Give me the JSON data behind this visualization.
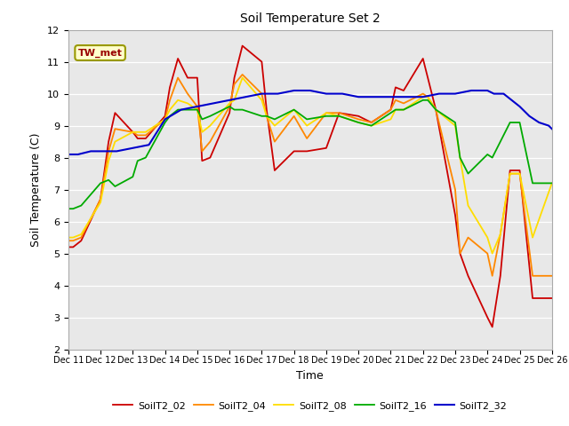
{
  "title": "Soil Temperature Set 2",
  "xlabel": "Time",
  "ylabel": "Soil Temperature (C)",
  "ylim": [
    2.0,
    12.0
  ],
  "yticks": [
    2.0,
    3.0,
    4.0,
    5.0,
    6.0,
    7.0,
    8.0,
    9.0,
    10.0,
    11.0,
    12.0
  ],
  "fig_bg_color": "#ffffff",
  "plot_bg_color": "#e8e8e8",
  "annotation_text": "TW_met",
  "annotation_bg": "#ffffcc",
  "annotation_border": "#999900",
  "annotation_text_color": "#990000",
  "series": {
    "SoilT2_02": {
      "color": "#cc0000",
      "linewidth": 1.3,
      "x": [
        11,
        11.15,
        11.4,
        12,
        12.25,
        12.45,
        13,
        13.15,
        13.4,
        14,
        14.15,
        14.4,
        14.7,
        15,
        15.15,
        15.4,
        16,
        16.15,
        16.4,
        17,
        17.15,
        17.4,
        18,
        18.4,
        19,
        19.4,
        20,
        20.4,
        21,
        21.15,
        21.4,
        22,
        22.15,
        22.4,
        23,
        23.15,
        23.4,
        24,
        24.15,
        24.4,
        24.7,
        25,
        25.4,
        26
      ],
      "y": [
        5.2,
        5.2,
        5.4,
        6.7,
        8.5,
        9.4,
        8.8,
        8.6,
        8.6,
        9.3,
        10.2,
        11.1,
        10.5,
        10.5,
        7.9,
        8.0,
        9.4,
        10.5,
        11.5,
        11.0,
        9.5,
        7.6,
        8.2,
        8.2,
        8.3,
        9.4,
        9.3,
        9.1,
        9.5,
        10.2,
        10.1,
        11.1,
        10.5,
        9.5,
        6.2,
        5.0,
        4.3,
        3.0,
        2.7,
        4.3,
        7.6,
        7.6,
        3.6,
        3.6
      ]
    },
    "SoilT2_04": {
      "color": "#ff8800",
      "linewidth": 1.3,
      "x": [
        11,
        11.15,
        11.4,
        12,
        12.25,
        12.45,
        13,
        13.15,
        13.4,
        14,
        14.15,
        14.4,
        14.7,
        15,
        15.15,
        15.4,
        16,
        16.15,
        16.4,
        17,
        17.15,
        17.4,
        18,
        18.4,
        19,
        19.4,
        20,
        20.4,
        21,
        21.15,
        21.4,
        22,
        22.15,
        22.4,
        23,
        23.15,
        23.4,
        24,
        24.15,
        24.4,
        24.7,
        25,
        25.4,
        26
      ],
      "y": [
        5.4,
        5.4,
        5.5,
        6.7,
        8.2,
        8.9,
        8.8,
        8.7,
        8.7,
        9.2,
        9.8,
        10.5,
        10.0,
        9.6,
        8.2,
        8.5,
        9.6,
        10.3,
        10.6,
        10.0,
        9.3,
        8.5,
        9.3,
        8.6,
        9.4,
        9.4,
        9.2,
        9.1,
        9.5,
        9.8,
        9.7,
        10.0,
        9.9,
        9.5,
        7.0,
        5.0,
        5.5,
        5.0,
        4.3,
        5.6,
        7.5,
        7.5,
        4.3,
        4.3
      ]
    },
    "SoilT2_08": {
      "color": "#ffdd00",
      "linewidth": 1.3,
      "x": [
        11,
        11.15,
        11.4,
        12,
        12.25,
        12.45,
        13,
        13.15,
        13.4,
        14,
        14.15,
        14.4,
        14.7,
        15,
        15.15,
        15.4,
        16,
        16.15,
        16.4,
        17,
        17.15,
        17.4,
        18,
        18.4,
        19,
        19.4,
        20,
        20.4,
        21,
        21.15,
        21.4,
        22,
        22.15,
        22.4,
        23,
        23.15,
        23.4,
        24,
        24.15,
        24.4,
        24.7,
        25,
        25.4,
        26
      ],
      "y": [
        5.5,
        5.5,
        5.6,
        6.6,
        7.9,
        8.5,
        8.8,
        8.8,
        8.8,
        9.2,
        9.5,
        9.8,
        9.7,
        9.5,
        8.8,
        9.0,
        9.7,
        9.8,
        10.5,
        9.8,
        9.3,
        9.0,
        9.5,
        9.0,
        9.4,
        9.3,
        9.1,
        9.0,
        9.2,
        9.5,
        9.5,
        9.9,
        9.9,
        9.5,
        9.0,
        8.0,
        6.5,
        5.5,
        5.0,
        5.6,
        7.5,
        7.5,
        5.5,
        7.2
      ]
    },
    "SoilT2_16": {
      "color": "#00aa00",
      "linewidth": 1.3,
      "x": [
        11,
        11.15,
        11.4,
        12,
        12.25,
        12.45,
        13,
        13.15,
        13.4,
        14,
        14.15,
        14.4,
        14.7,
        15,
        15.15,
        15.4,
        16,
        16.15,
        16.4,
        17,
        17.15,
        17.4,
        18,
        18.4,
        19,
        19.4,
        20,
        20.4,
        21,
        21.15,
        21.4,
        22,
        22.15,
        22.4,
        23,
        23.15,
        23.4,
        24,
        24.15,
        24.4,
        24.7,
        25,
        25.4,
        26
      ],
      "y": [
        6.4,
        6.4,
        6.5,
        7.2,
        7.3,
        7.1,
        7.4,
        7.9,
        8.0,
        9.1,
        9.3,
        9.5,
        9.5,
        9.5,
        9.2,
        9.3,
        9.6,
        9.5,
        9.5,
        9.3,
        9.3,
        9.2,
        9.5,
        9.2,
        9.3,
        9.3,
        9.1,
        9.0,
        9.4,
        9.5,
        9.5,
        9.8,
        9.8,
        9.5,
        9.1,
        8.0,
        7.5,
        8.1,
        8.0,
        8.5,
        9.1,
        9.1,
        7.2,
        7.2
      ]
    },
    "SoilT2_32": {
      "color": "#0000cc",
      "linewidth": 1.5,
      "x": [
        11,
        11.3,
        11.7,
        12,
        12.5,
        13,
        13.5,
        14,
        14.5,
        15,
        15.5,
        16,
        16.5,
        17,
        17.5,
        18,
        18.5,
        19,
        19.5,
        20,
        20.5,
        21,
        21.5,
        22,
        22.5,
        23,
        23.5,
        24,
        24.2,
        24.5,
        25,
        25.3,
        25.6,
        25.9,
        26
      ],
      "y": [
        8.1,
        8.1,
        8.2,
        8.2,
        8.2,
        8.3,
        8.4,
        9.2,
        9.5,
        9.6,
        9.7,
        9.8,
        9.9,
        10.0,
        10.0,
        10.1,
        10.1,
        10.0,
        10.0,
        9.9,
        9.9,
        9.9,
        9.9,
        9.9,
        10.0,
        10.0,
        10.1,
        10.1,
        10.0,
        10.0,
        9.6,
        9.3,
        9.1,
        9.0,
        8.9
      ]
    }
  },
  "xtick_positions": [
    11,
    12,
    13,
    14,
    15,
    16,
    17,
    18,
    19,
    20,
    21,
    22,
    23,
    24,
    25,
    26
  ],
  "xtick_labels": [
    "Dec 11",
    "Dec 12",
    "Dec 13",
    "Dec 14",
    "Dec 15",
    "Dec 16",
    "Dec 17",
    "Dec 18",
    "Dec 19",
    "Dec 20",
    "Dec 21",
    "Dec 22",
    "Dec 23",
    "Dec 24",
    "Dec 25",
    "Dec 26"
  ],
  "legend_entries": [
    "SoilT2_02",
    "SoilT2_04",
    "SoilT2_08",
    "SoilT2_16",
    "SoilT2_32"
  ],
  "legend_colors": [
    "#cc0000",
    "#ff8800",
    "#ffdd00",
    "#00aa00",
    "#0000cc"
  ]
}
